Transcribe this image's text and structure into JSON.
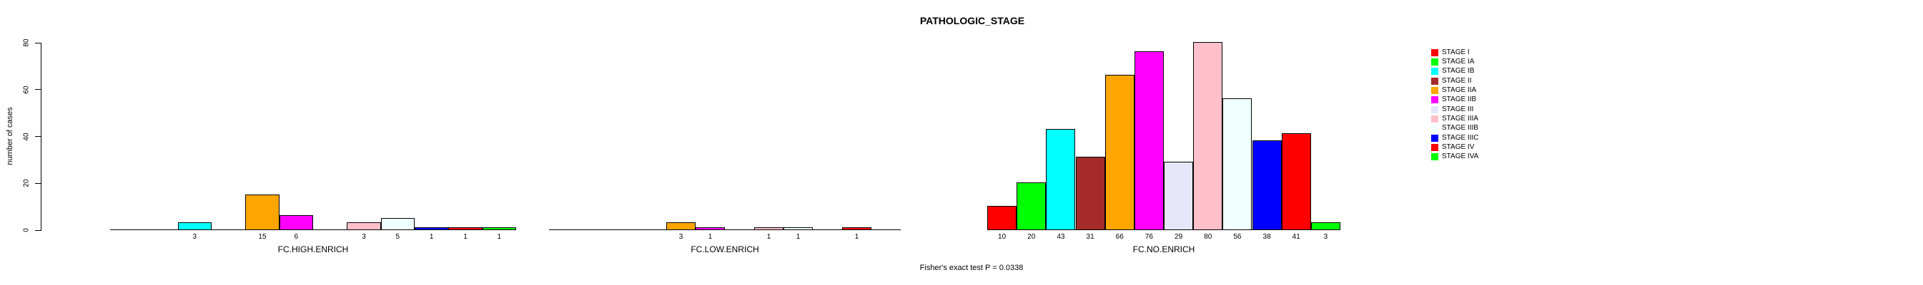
{
  "chart_data": {
    "type": "bar",
    "title": "PATHOLOGIC_STAGE",
    "ylabel": "number of cases",
    "ylim": [
      0,
      80
    ],
    "yticks": [
      0,
      20,
      40,
      60,
      80
    ],
    "grid": false,
    "legend_position": "right",
    "annotation": "Fisher's exact test P = 0.0338",
    "stages": [
      "STAGE I",
      "STAGE IA",
      "STAGE IB",
      "STAGE II",
      "STAGE IIA",
      "STAGE IIB",
      "STAGE III",
      "STAGE IIIA",
      "STAGE IIIB",
      "STAGE IIIC",
      "STAGE IV",
      "STAGE IVA"
    ],
    "colors": [
      "#FF0000",
      "#00FF00",
      "#00FFFF",
      "#A52A2A",
      "#FFA500",
      "#FF00FF",
      "#E6E6FA",
      "#FFC0CB",
      "#F0FFFF",
      "#0000FF",
      "#FF0000",
      "#00FF00"
    ],
    "groups": [
      {
        "label": "FC.HIGH.ENRICH",
        "values": [
          0,
          0,
          3,
          0,
          15,
          6,
          0,
          3,
          5,
          1,
          1,
          1
        ]
      },
      {
        "label": "FC.LOW.ENRICH",
        "values": [
          0,
          0,
          0,
          0,
          3,
          1,
          0,
          1,
          1,
          0,
          1,
          0
        ]
      },
      {
        "label": "FC.NO.ENRICH",
        "values": [
          10,
          20,
          43,
          31,
          66,
          76,
          29,
          80,
          56,
          38,
          41,
          3
        ]
      }
    ]
  }
}
